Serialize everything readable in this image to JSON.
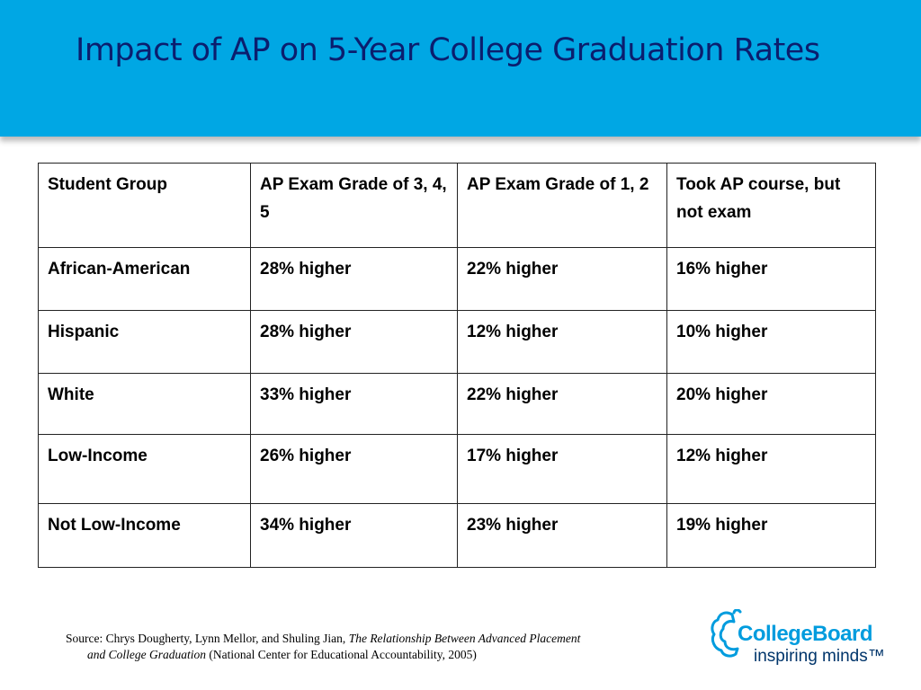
{
  "slide": {
    "title": "Impact of AP on 5-Year College Graduation Rates"
  },
  "table": {
    "headers": [
      "Student Group",
      "AP Exam Grade of 3, 4, 5",
      "AP Exam Grade of 1, 2",
      "Took AP course, but not exam"
    ],
    "rows": [
      [
        "African-American",
        "28% higher",
        "22% higher",
        "16% higher"
      ],
      [
        "Hispanic",
        "28% higher",
        "12% higher",
        "10% higher"
      ],
      [
        "White",
        "33% higher",
        "22% higher",
        "20% higher"
      ],
      [
        "Low-Income",
        "26% higher",
        "17% higher",
        "12% higher"
      ],
      [
        "Not Low-Income",
        "34% higher",
        "23% higher",
        "19% higher"
      ]
    ]
  },
  "source": {
    "prefix": "Source: Chrys Dougherty, Lynn Mellor, and Shuling Jian, ",
    "title_part1": "The Relationship Between Advanced Placement",
    "title_part2": "and College Graduation",
    "suffix": " (National Center for Educational Accountability, 2005)"
  },
  "logo": {
    "name": "CollegeBoard",
    "tagline": "inspiring minds™",
    "colors": {
      "primary": "#009cde",
      "secondary": "#00356b"
    }
  },
  "theme": {
    "banner": "#00a7e4",
    "title_color": "#0b1e6e"
  }
}
